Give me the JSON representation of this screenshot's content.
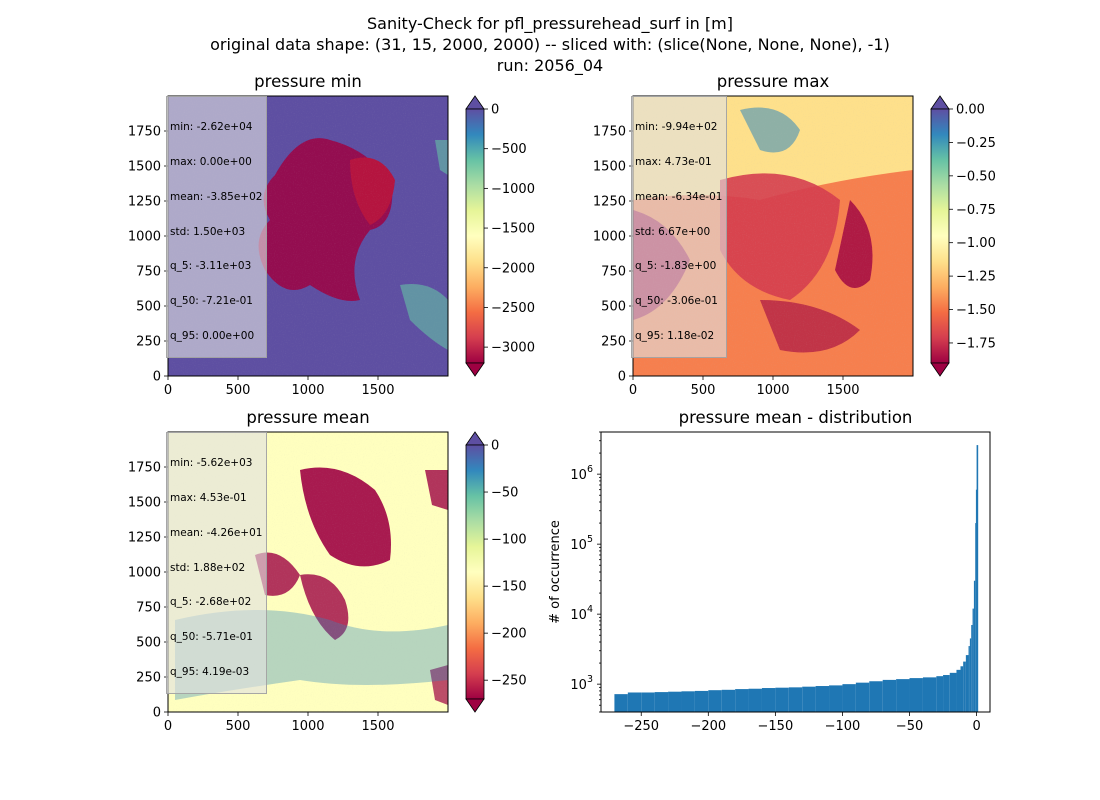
{
  "figure": {
    "title_lines": [
      "Sanity-Check for pfl_pressurehead_surf in [m]",
      "original data shape: (31, 15, 2000, 2000) -- sliced with: (slice(None, None, None), -1)",
      "run: 2056_04"
    ]
  },
  "colormap": {
    "name": "Spectral",
    "stops": [
      "#9e0142",
      "#d53e4f",
      "#f46d43",
      "#fdae61",
      "#fee08b",
      "#ffffbf",
      "#e6f598",
      "#abdda4",
      "#66c2a5",
      "#3288bd",
      "#5e4fa2"
    ],
    "over_color": "#5e4fa2",
    "under_color": "#9e0142"
  },
  "panels": [
    {
      "id": "min",
      "title": "pressure min",
      "stats": [
        "min: -2.62e+04",
        "max: 0.00e+00",
        "mean: -3.85e+02",
        "std: 1.50e+03",
        "q_5: -3.11e+03",
        "q_50: -7.21e-01",
        "q_95: 0.00e+00"
      ],
      "colorbar": {
        "ticks": [
          "0",
          "−500",
          "−1000",
          "−1500",
          "−2000",
          "−2500",
          "−3000"
        ]
      }
    },
    {
      "id": "max",
      "title": "pressure max",
      "stats": [
        "min: -9.94e+02",
        "max: 4.73e-01",
        "mean: -6.34e-01",
        "std: 6.67e+00",
        "q_5: -1.83e+00",
        "q_50: -3.06e-01",
        "q_95: 1.18e-02"
      ],
      "colorbar": {
        "ticks": [
          "0.00",
          "−0.25",
          "−0.50",
          "−0.75",
          "−1.00",
          "−1.25",
          "−1.50",
          "−1.75"
        ]
      }
    },
    {
      "id": "mean",
      "title": "pressure mean",
      "stats": [
        "min: -5.62e+03",
        "max: 4.53e-01",
        "mean: -4.26e+01",
        "std: 1.88e+02",
        "q_5: -2.68e+02",
        "q_50: -5.71e-01",
        "q_95: 4.19e-03"
      ],
      "colorbar": {
        "ticks": [
          "0",
          "−50",
          "−100",
          "−150",
          "−200",
          "−250"
        ]
      }
    }
  ],
  "map_axis": {
    "x_ticks": [
      "0",
      "500",
      "1000",
      "1500"
    ],
    "y_ticks": [
      "0",
      "250",
      "500",
      "750",
      "1000",
      "1250",
      "1500",
      "1750"
    ]
  },
  "chart_data": [
    {
      "type": "heatmap",
      "title": "pressure min",
      "x_range": [
        0,
        2000
      ],
      "y_range": [
        0,
        2000
      ],
      "color_range": [
        -3100,
        0
      ],
      "dominant_value": 0
    },
    {
      "type": "heatmap",
      "title": "pressure max",
      "x_range": [
        0,
        2000
      ],
      "y_range": [
        0,
        2000
      ],
      "color_range": [
        -1.83,
        0.012
      ]
    },
    {
      "type": "heatmap",
      "title": "pressure mean",
      "x_range": [
        0,
        2000
      ],
      "y_range": [
        0,
        2000
      ],
      "color_range": [
        -268,
        0.004
      ],
      "dominant_value": 0
    },
    {
      "type": "bar",
      "title": "pressure mean - distribution",
      "ylabel": "# of occurrence",
      "xlim": [
        -280,
        10
      ],
      "ylim": [
        400,
        4000000
      ],
      "y_scale": "log",
      "color": "#1f77b4",
      "x_ticks": [
        "−250",
        "−200",
        "−150",
        "−100",
        "−50",
        "0"
      ],
      "y_ticks": [
        "10",
        "10",
        "10",
        "10"
      ],
      "y_tick_exponents": [
        "3",
        "4",
        "5",
        "6"
      ],
      "x": [
        -270,
        -260,
        -250,
        -240,
        -230,
        -220,
        -210,
        -200,
        -190,
        -180,
        -170,
        -160,
        -150,
        -140,
        -130,
        -120,
        -110,
        -100,
        -90,
        -80,
        -70,
        -60,
        -50,
        -40,
        -30,
        -25,
        -20,
        -15,
        -12,
        -10,
        -8,
        -6,
        -5,
        -4,
        -3,
        -2,
        -1,
        -0.5,
        0
      ],
      "values": [
        720,
        760,
        760,
        770,
        780,
        790,
        800,
        820,
        830,
        850,
        860,
        880,
        890,
        900,
        920,
        940,
        960,
        1000,
        1050,
        1100,
        1150,
        1180,
        1220,
        1250,
        1300,
        1350,
        1450,
        1600,
        1800,
        2100,
        2600,
        3500,
        4500,
        7000,
        12000,
        30000,
        200000,
        600000,
        2600000
      ]
    }
  ]
}
